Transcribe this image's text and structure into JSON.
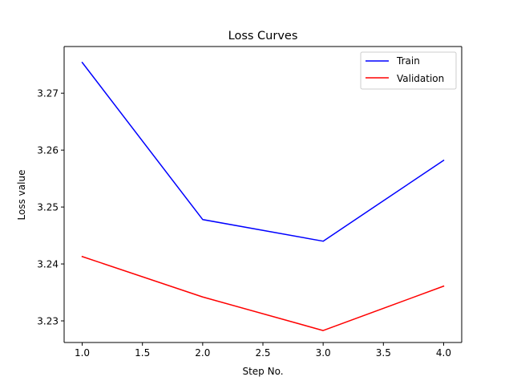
{
  "chart_data": {
    "type": "line",
    "title": "Loss Curves",
    "xlabel": "Step No.",
    "ylabel": "Loss value",
    "x": [
      1.0,
      2.0,
      3.0,
      4.0
    ],
    "xlim": [
      0.85,
      4.15
    ],
    "ylim": [
      3.2262,
      3.2782
    ],
    "xticks": [
      1.0,
      1.5,
      2.0,
      2.5,
      3.0,
      3.5,
      4.0
    ],
    "xtick_labels": [
      "1.0",
      "1.5",
      "2.0",
      "2.5",
      "3.0",
      "3.5",
      "4.0"
    ],
    "yticks": [
      3.23,
      3.24,
      3.25,
      3.26,
      3.27
    ],
    "ytick_labels": [
      "3.23",
      "3.24",
      "3.25",
      "3.26",
      "3.27"
    ],
    "grid": false,
    "legend_position": "top-right",
    "series": [
      {
        "name": "Train",
        "color": "#0000ff",
        "values": [
          3.2754,
          3.2478,
          3.244,
          3.2582
        ]
      },
      {
        "name": "Validation",
        "color": "#ff0000",
        "values": [
          3.2413,
          3.2342,
          3.2283,
          3.2361
        ]
      }
    ]
  }
}
